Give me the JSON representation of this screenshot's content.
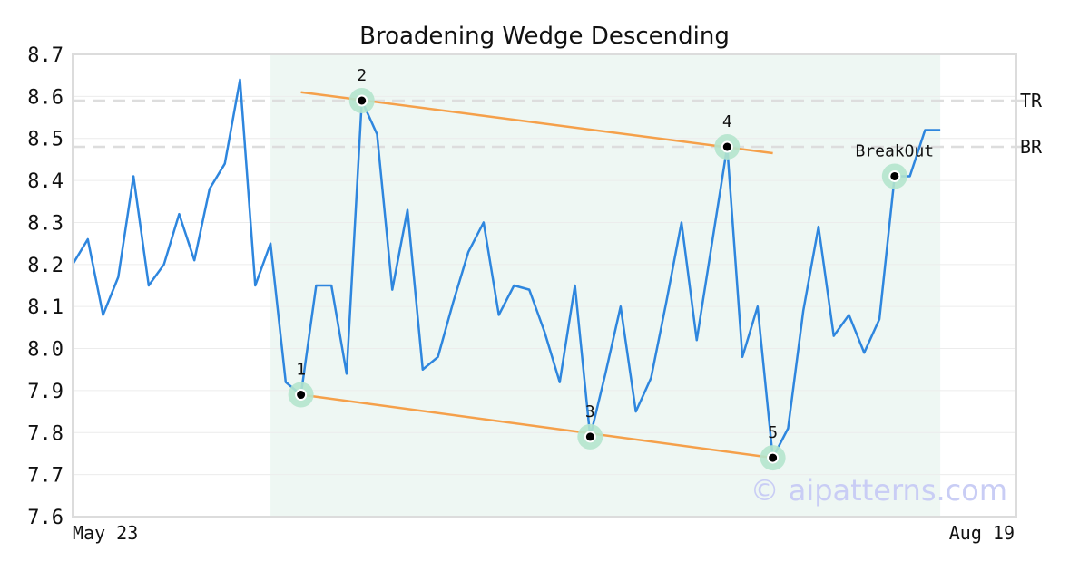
{
  "chart_data": {
    "type": "line",
    "title": "Broadening Wedge Descending",
    "xlabel": "",
    "ylabel": "",
    "ylim": [
      7.6,
      8.7
    ],
    "yticks": [
      "7.6",
      "7.7",
      "7.8",
      "7.9",
      "8.0",
      "8.1",
      "8.2",
      "8.3",
      "8.4",
      "8.5",
      "8.6",
      "8.7"
    ],
    "x_start_label": "May 23",
    "x_end_label": "Aug 19",
    "x_range": [
      0,
      62
    ],
    "grid": "horizontal",
    "series": [
      {
        "color": "#2e86de",
        "values": [
          8.2,
          8.26,
          8.08,
          8.17,
          8.41,
          8.15,
          8.2,
          8.32,
          8.21,
          8.38,
          8.44,
          8.64,
          8.15,
          8.25,
          7.92,
          7.89,
          8.15,
          8.15,
          7.94,
          8.59,
          8.51,
          8.14,
          8.33,
          7.95,
          7.98,
          8.11,
          8.23,
          8.3,
          8.08,
          8.15,
          8.14,
          8.04,
          7.92,
          8.15,
          7.79,
          7.94,
          8.1,
          7.85,
          7.93,
          8.11,
          8.3,
          8.02,
          8.25,
          8.48,
          7.98,
          8.1,
          7.74,
          7.81,
          8.09,
          8.29,
          8.03,
          8.08,
          7.99,
          8.07,
          8.41,
          8.41,
          8.52,
          8.52
        ]
      }
    ],
    "pattern_region": {
      "x": [
        13,
        57
      ],
      "color": "#eef7f3"
    },
    "reference_lines": [
      {
        "label": "TR",
        "y": 8.59,
        "color": "#dddddd"
      },
      {
        "label": "BR",
        "y": 8.48,
        "color": "#dddddd"
      }
    ],
    "trend_lines": [
      {
        "from": [
          15.0,
          8.61
        ],
        "to": [
          46.0,
          8.465
        ],
        "color": "#f5a04a"
      },
      {
        "from": [
          15.0,
          7.89
        ],
        "to": [
          46.0,
          7.74
        ],
        "color": "#f5a04a"
      }
    ],
    "points": [
      {
        "label": "1",
        "x": 15,
        "y": 7.89
      },
      {
        "label": "2",
        "x": 19,
        "y": 8.59
      },
      {
        "label": "3",
        "x": 34,
        "y": 7.79
      },
      {
        "label": "4",
        "x": 43,
        "y": 8.48
      },
      {
        "label": "5",
        "x": 46,
        "y": 7.74
      },
      {
        "label": "BreakOut",
        "x": 54,
        "y": 8.41
      }
    ],
    "watermark": "© aipatterns.com"
  }
}
